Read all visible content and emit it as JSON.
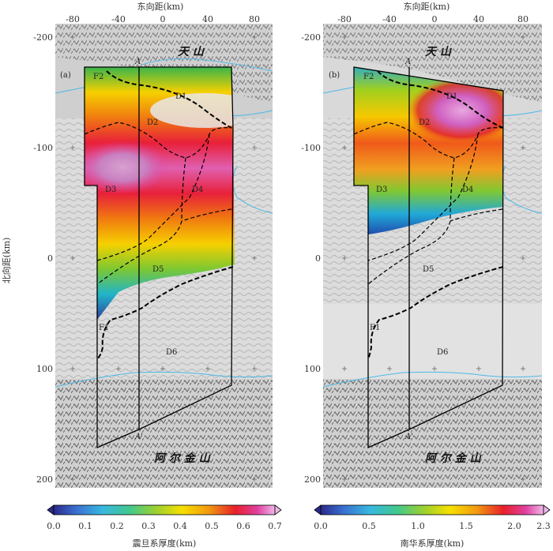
{
  "x_axis_title": "东向距(km)",
  "y_axis_title": "北向距(km)",
  "x_ticks": [
    "-80",
    "-40",
    "0",
    "40",
    "80"
  ],
  "y_ticks": [
    "-200",
    "-100",
    "0",
    "100",
    "200"
  ],
  "mountain_north": "天  山",
  "mountain_south": "阿 尔 金 山",
  "profile_label": "A",
  "profile_label_bottom": "A'",
  "colors": {
    "outline": "#000000",
    "rivers": "#4db8e8",
    "basin": "#dedede"
  },
  "panels": [
    {
      "tag": "(a)",
      "fault_labels": [
        "F2",
        "F1"
      ],
      "zones": [
        "D1",
        "D2",
        "D3",
        "D4",
        "D5",
        "D6"
      ],
      "colorbar": {
        "title": "震旦系厚度(km)",
        "ticks": [
          "0.0",
          "0.1",
          "0.2",
          "0.3",
          "0.4",
          "0.5",
          "0.6",
          "0.7"
        ],
        "range": [
          0,
          0.7
        ],
        "scheme": "rainbow"
      }
    },
    {
      "tag": "(b)",
      "fault_labels": [
        "F2",
        "F1"
      ],
      "zones": [
        "D1",
        "D2",
        "D3",
        "D4",
        "D5",
        "D6"
      ],
      "colorbar": {
        "title": "南华系厚度(km)",
        "ticks": [
          "0.0",
          "0.5",
          "1.0",
          "1.5",
          "2.0",
          "2.3"
        ],
        "range": [
          0,
          2.3
        ],
        "scheme": "rainbow"
      }
    }
  ]
}
